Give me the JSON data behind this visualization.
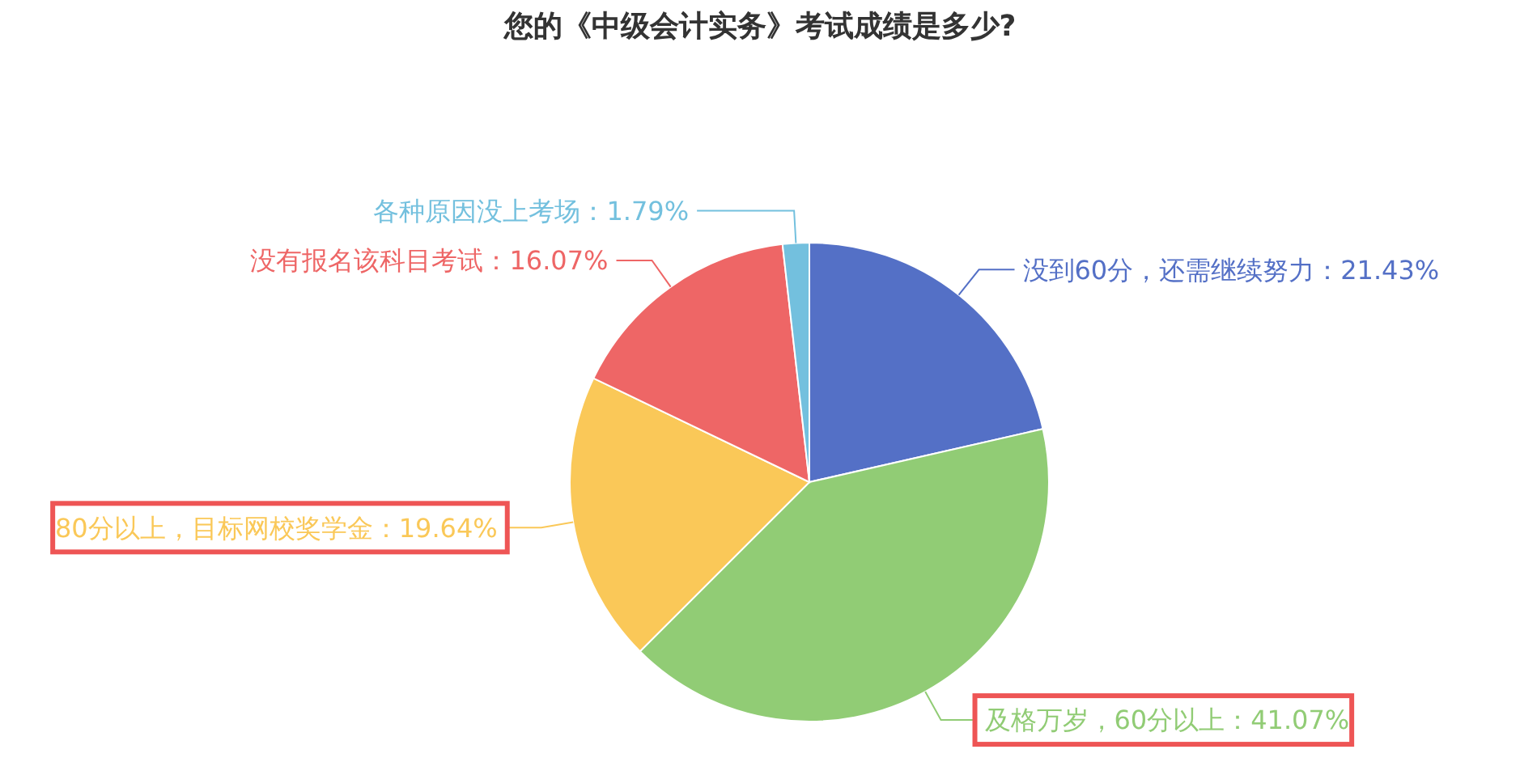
{
  "chart_data": {
    "type": "pie",
    "title": "您的《中级会计实务》考试成绩是多少?",
    "categories": [
      "没到60分，还需继续努力",
      "及格万岁，60分以上",
      "80分以上，目标网校奖学金",
      "没有报名该科目考试",
      "各种原因没上考场"
    ],
    "values": [
      21.43,
      41.07,
      19.64,
      16.07,
      1.79
    ],
    "value_labels": [
      "21.43%",
      "41.07%",
      "19.64%",
      "16.07%",
      "1.79%"
    ],
    "colors": [
      "#5470c6",
      "#91cc75",
      "#fac858",
      "#ee6666",
      "#73c0de"
    ]
  }
}
